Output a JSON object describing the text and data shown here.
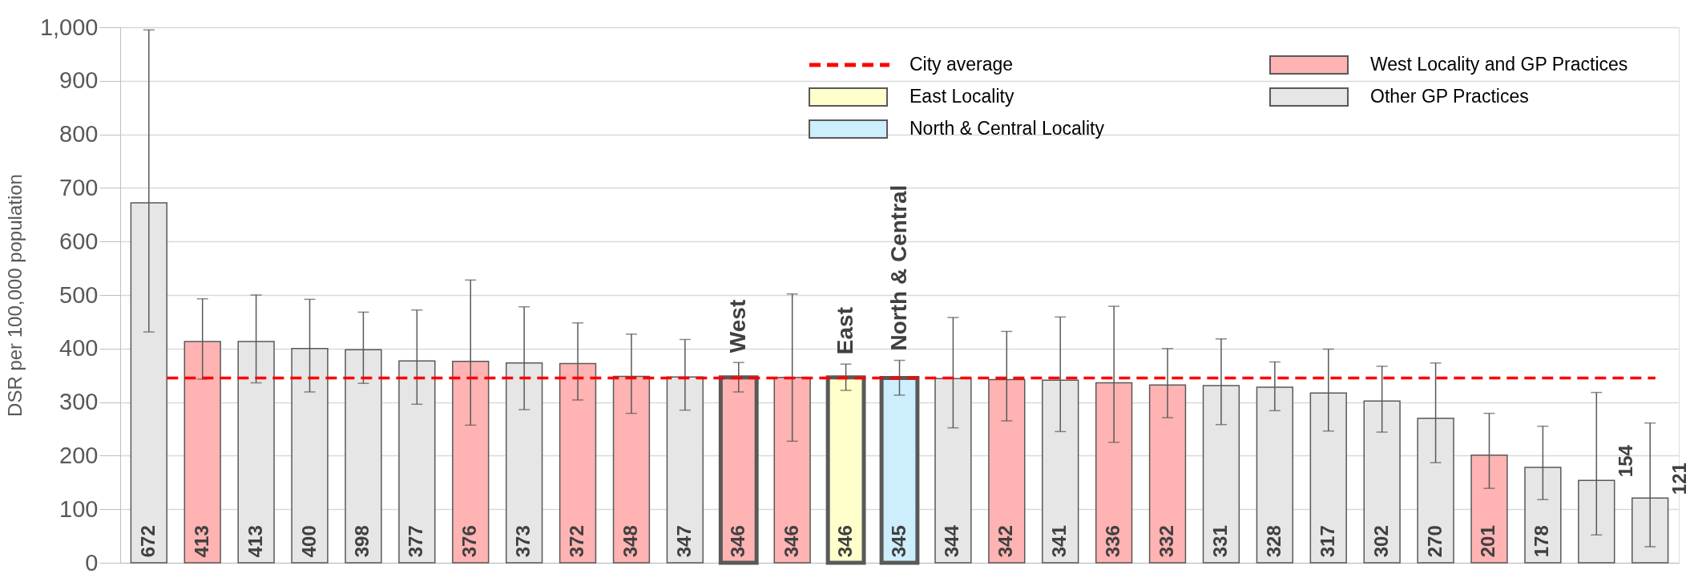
{
  "chart_data": {
    "type": "bar",
    "ylabel": "DSR per 100,000 population",
    "categories": [
      null,
      null,
      null,
      null,
      null,
      null,
      null,
      null,
      null,
      null,
      null,
      "West",
      null,
      "East",
      "North & Central",
      null,
      null,
      null,
      null,
      null,
      null,
      null,
      null,
      null,
      null,
      null,
      null,
      null,
      null
    ],
    "series": [
      {
        "name": "East Locality",
        "color": "#ffffcc",
        "values": [
          null,
          null,
          null,
          null,
          null,
          null,
          null,
          null,
          null,
          null,
          null,
          null,
          null,
          346,
          null,
          null,
          null,
          null,
          null,
          null,
          null,
          null,
          null,
          null,
          null,
          null,
          null,
          null,
          null
        ],
        "errors": [
          null,
          null,
          null,
          null,
          null,
          null,
          null,
          null,
          null,
          null,
          null,
          null,
          null,
          [
            322,
            371
          ],
          null,
          null,
          null,
          null,
          null,
          null,
          null,
          null,
          null,
          null,
          null,
          null,
          null,
          null,
          null
        ]
      },
      {
        "name": "North & Central Locality",
        "color": "#cdeefd",
        "values": [
          null,
          null,
          null,
          null,
          null,
          null,
          null,
          null,
          null,
          null,
          null,
          null,
          null,
          null,
          345,
          null,
          null,
          null,
          null,
          null,
          null,
          null,
          null,
          null,
          null,
          null,
          null,
          null,
          null
        ],
        "errors": [
          null,
          null,
          null,
          null,
          null,
          null,
          null,
          null,
          null,
          null,
          null,
          null,
          null,
          null,
          [
            313,
            378
          ],
          null,
          null,
          null,
          null,
          null,
          null,
          null,
          null,
          null,
          null,
          null,
          null,
          null,
          null
        ]
      },
      {
        "name": "West Locality and GP Practices",
        "color": "#ffb3b3",
        "values": [
          null,
          413,
          null,
          null,
          null,
          null,
          376,
          null,
          372,
          348,
          null,
          346,
          346,
          null,
          null,
          null,
          342,
          null,
          336,
          332,
          null,
          null,
          null,
          null,
          null,
          201,
          null,
          null,
          null
        ],
        "errors": [
          null,
          [
            343,
            493
          ],
          null,
          null,
          null,
          null,
          [
            257,
            528
          ],
          null,
          [
            304,
            448
          ],
          [
            279,
            427
          ],
          null,
          [
            319,
            374
          ],
          [
            227,
            502
          ],
          null,
          null,
          null,
          [
            265,
            432
          ],
          null,
          [
            225,
            479
          ],
          [
            271,
            400
          ],
          null,
          null,
          null,
          null,
          null,
          [
            139,
            279
          ],
          null,
          null,
          null
        ]
      },
      {
        "name": "Other GP Practices",
        "color": "#e6e6e6",
        "values": [
          672,
          null,
          413,
          400,
          398,
          377,
          null,
          373,
          null,
          null,
          347,
          null,
          null,
          null,
          null,
          344,
          null,
          341,
          null,
          null,
          331,
          328,
          317,
          302,
          270,
          null,
          178,
          154,
          121
        ],
        "errors": [
          [
            431,
            995
          ],
          null,
          [
            336,
            500
          ],
          [
            319,
            492
          ],
          [
            335,
            468
          ],
          [
            296,
            472
          ],
          null,
          [
            286,
            478
          ],
          null,
          null,
          [
            285,
            417
          ],
          null,
          null,
          null,
          null,
          [
            252,
            458
          ],
          null,
          [
            245,
            459
          ],
          null,
          null,
          [
            258,
            418
          ],
          [
            284,
            375
          ],
          [
            246,
            399
          ],
          [
            244,
            367
          ],
          [
            187,
            373
          ],
          null,
          [
            118,
            255
          ],
          [
            52,
            318
          ],
          [
            30,
            261
          ]
        ]
      }
    ],
    "ylim": [
      0,
      1000
    ],
    "yticks": [
      0,
      100,
      200,
      300,
      400,
      500,
      600,
      700,
      800,
      900,
      {
        "value": 1000,
        "label": "1,000"
      }
    ],
    "ref_lines": [
      {
        "axis": "y",
        "value": 345,
        "label": "City average",
        "color": "#ff0000",
        "line_style": "dashed"
      }
    ],
    "data_labels": true,
    "grid": "y",
    "legend": "top right"
  }
}
